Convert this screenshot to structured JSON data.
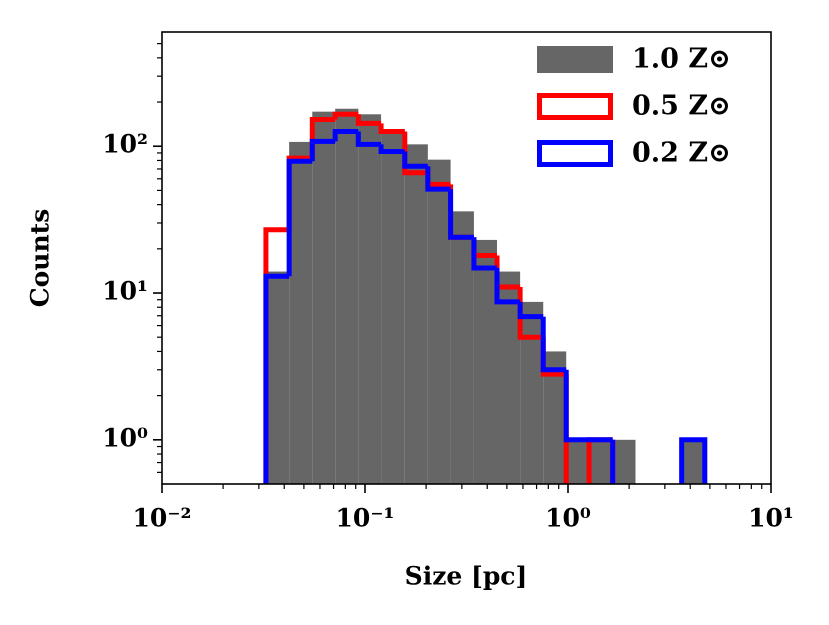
{
  "chart_data": {
    "type": "histogram",
    "xlabel": "Size [pc]",
    "ylabel": "Counts",
    "xscale": "log",
    "yscale": "log",
    "xlim": [
      0.01,
      10
    ],
    "ylim": [
      0.5,
      600
    ],
    "xticks": [
      {
        "value": 0.01,
        "label": "10⁻²"
      },
      {
        "value": 0.1,
        "label": "10⁻¹"
      },
      {
        "value": 1,
        "label": "10⁰"
      },
      {
        "value": 10,
        "label": "10¹"
      }
    ],
    "yticks": [
      {
        "value": 1,
        "label": "10⁰"
      },
      {
        "value": 10,
        "label": "10¹"
      },
      {
        "value": 100,
        "label": "10²"
      }
    ],
    "xticks_minor": [
      0.02,
      0.03,
      0.04,
      0.05,
      0.06,
      0.07,
      0.08,
      0.09,
      0.2,
      0.3,
      0.4,
      0.5,
      0.6,
      0.7,
      0.8,
      0.9,
      2,
      3,
      4,
      5,
      6,
      7,
      8,
      9
    ],
    "yticks_minor": [
      0.6,
      0.7,
      0.8,
      0.9,
      2,
      3,
      4,
      5,
      6,
      7,
      8,
      9,
      20,
      30,
      40,
      50,
      60,
      70,
      80,
      90,
      200,
      300,
      400,
      500
    ],
    "bins": [
      0.0325,
      0.0423,
      0.055,
      0.0713,
      0.0927,
      0.12,
      0.157,
      0.204,
      0.264,
      0.344,
      0.447,
      0.581,
      0.755,
      0.98,
      1.27,
      1.66,
      2.15,
      2.8,
      3.63,
      4.72
    ],
    "legend": "upper right",
    "series": [
      {
        "name": "1.0 Z⊙",
        "color": "#666666",
        "style": "filled",
        "values": [
          14,
          107,
          172,
          180,
          165,
          130,
          103,
          81,
          36,
          23,
          14,
          8.7,
          4,
          1,
          1,
          1,
          0,
          0,
          1
        ]
      },
      {
        "name": "0.5 Z⊙",
        "color": "#ff0000",
        "style": "step",
        "values": [
          27,
          83,
          152,
          165,
          143,
          126,
          66,
          55,
          24,
          18,
          11,
          5,
          2.8,
          0,
          1,
          0,
          0,
          0,
          0
        ]
      },
      {
        "name": "0.2 Z⊙",
        "color": "#0000ff",
        "style": "step",
        "values": [
          13,
          79,
          108,
          126,
          103,
          92,
          73,
          51,
          24,
          14.8,
          8.7,
          6.9,
          3,
          1,
          1,
          0,
          0,
          0,
          1
        ]
      }
    ]
  }
}
